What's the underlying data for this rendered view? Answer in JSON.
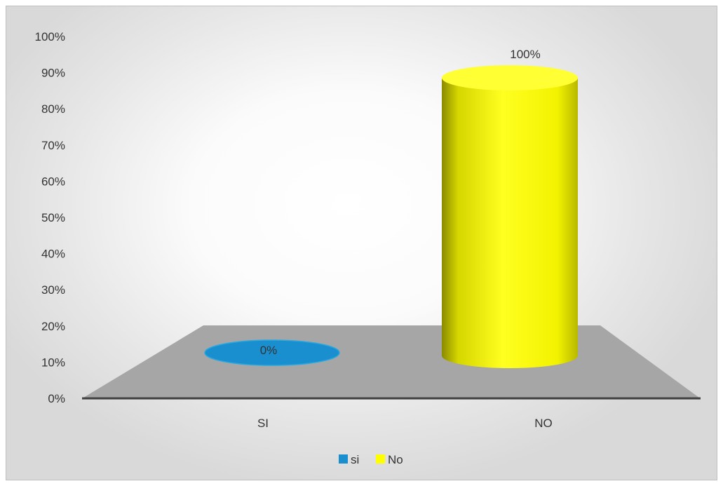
{
  "chart_data": {
    "type": "bar",
    "style": "3d-cylinder",
    "categories": [
      "SI",
      "NO"
    ],
    "series": [
      {
        "name": "si",
        "color": "#1a8fd0",
        "values": [
          0,
          null
        ]
      },
      {
        "name": "No",
        "color": "#ffff00",
        "values": [
          null,
          100
        ]
      }
    ],
    "values": [
      0,
      100
    ],
    "data_labels": [
      "0%",
      "100%"
    ],
    "y_ticks": [
      "0%",
      "10%",
      "20%",
      "30%",
      "40%",
      "50%",
      "60%",
      "70%",
      "80%",
      "90%",
      "100%"
    ],
    "ylim": [
      0,
      100
    ],
    "grid": false,
    "legend": "bottom",
    "colors": {
      "floor": "#a6a6a6",
      "axis": "#404040",
      "text": "#333333"
    }
  }
}
